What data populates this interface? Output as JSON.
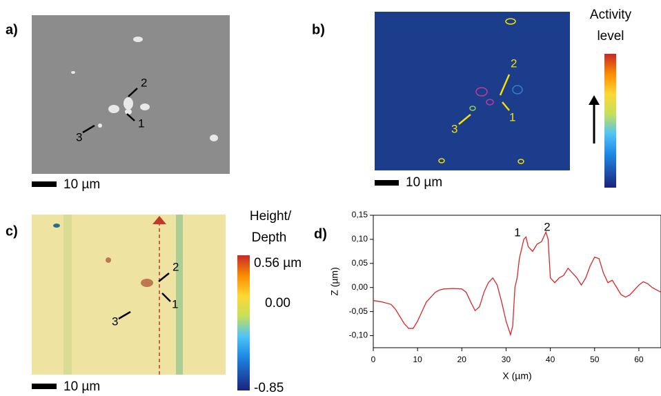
{
  "panels": {
    "a": {
      "label": "a)",
      "scale_bar": "10 µm",
      "markers": [
        "1",
        "2",
        "3"
      ]
    },
    "b": {
      "label": "b)",
      "scale_bar": "10 µm",
      "markers": [
        "1",
        "2",
        "3"
      ],
      "colorbar_title": [
        "Activity",
        "level"
      ]
    },
    "c": {
      "label": "c)",
      "scale_bar": "10 µm",
      "markers": [
        "1",
        "2",
        "3"
      ],
      "colorbar_title": [
        "Height/",
        "Depth"
      ],
      "colorbar_labels": [
        "0.56 µm",
        "0.00",
        "-0.85"
      ]
    }
  },
  "chart_data": {
    "type": "line",
    "panel_label": "d)",
    "xlabel": "X (µm)",
    "ylabel": "Z (µm)",
    "x": [
      0,
      2,
      4,
      5,
      6,
      7,
      8,
      9,
      10,
      11,
      12,
      13,
      14,
      15,
      16,
      18,
      20,
      21,
      22,
      23,
      24,
      25,
      26,
      27,
      28,
      29,
      30,
      31,
      31.5,
      32,
      32.5,
      33,
      34,
      34.5,
      35,
      36,
      37,
      38,
      39,
      39.5,
      40,
      41,
      42,
      43,
      44,
      45,
      46,
      47,
      48,
      49,
      50,
      51,
      52,
      53,
      54,
      55,
      56,
      57,
      58,
      59,
      60,
      61,
      62,
      63,
      64,
      65
    ],
    "series": [
      {
        "color": "#d62728",
        "values": [
          -0.027,
          -0.03,
          -0.035,
          -0.045,
          -0.06,
          -0.075,
          -0.085,
          -0.085,
          -0.07,
          -0.05,
          -0.03,
          -0.02,
          -0.01,
          -0.005,
          -0.003,
          -0.002,
          -0.003,
          -0.01,
          -0.03,
          -0.048,
          -0.04,
          -0.01,
          0.01,
          0.02,
          0.005,
          -0.03,
          -0.07,
          -0.098,
          -0.08,
          0.0,
          0.02,
          0.06,
          0.1,
          0.105,
          0.085,
          0.075,
          0.09,
          0.095,
          0.115,
          0.1,
          0.02,
          0.01,
          0.02,
          0.025,
          0.04,
          0.03,
          0.02,
          0.005,
          0.02,
          0.045,
          0.063,
          0.06,
          0.03,
          0.01,
          0.015,
          0.0,
          -0.015,
          -0.02,
          -0.015,
          -0.005,
          0.005,
          0.012,
          0.008,
          0.0,
          -0.005,
          -0.01
        ]
      }
    ],
    "xlim": [
      0,
      65
    ],
    "ylim": [
      -0.125,
      0.15
    ],
    "xticks": [
      0,
      10,
      20,
      30,
      40,
      50,
      60
    ],
    "yticks": [
      {
        "value": -0.1,
        "label": "-0,10"
      },
      {
        "value": -0.05,
        "label": "-0,05"
      },
      {
        "value": 0,
        "label": "0,00"
      },
      {
        "value": 0.05,
        "label": "0,05"
      },
      {
        "value": 0.1,
        "label": "0,10"
      },
      {
        "value": 0.15,
        "label": "0,15"
      }
    ],
    "annotations": [
      "1",
      "2"
    ]
  }
}
